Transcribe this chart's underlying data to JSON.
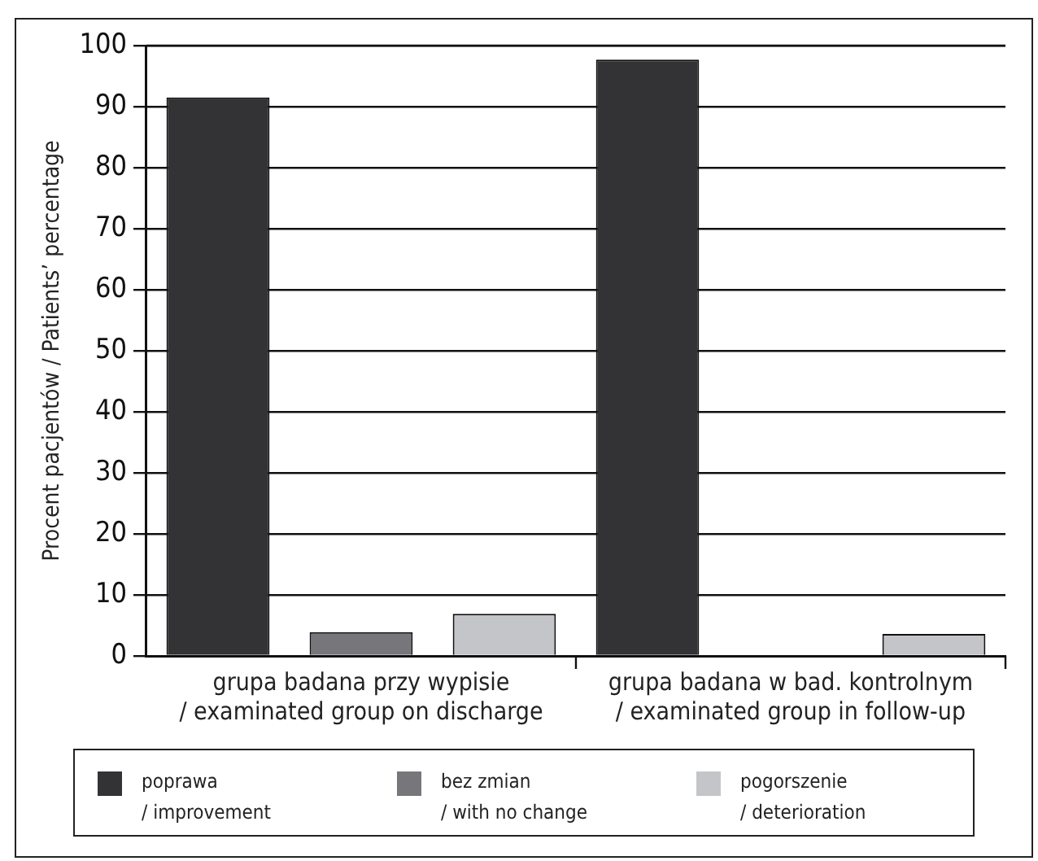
{
  "chart_data": {
    "type": "bar",
    "ylabel": "Procent pacjentów / Patients’ percentage",
    "categories": [
      "grupa badana przy wypisie / examinated group on discharge",
      "grupa badana w bad. kontrolnym / examinated group in follow-up"
    ],
    "series": [
      {
        "name": "poprawa / improvement",
        "color": "#333335",
        "values": [
          91.5,
          97.7
        ]
      },
      {
        "name": "bez zmian / with no change",
        "color": "#77767b",
        "values": [
          3.9,
          0
        ]
      },
      {
        "name": "pogorszenie / deterioration",
        "color": "#c4c5c9",
        "values": [
          6.9,
          3.6
        ]
      }
    ],
    "ylim": [
      0,
      100
    ],
    "yticks": [
      0,
      10,
      20,
      30,
      40,
      50,
      60,
      70,
      80,
      90,
      100
    ],
    "grid": "y",
    "legend": "bottom"
  }
}
